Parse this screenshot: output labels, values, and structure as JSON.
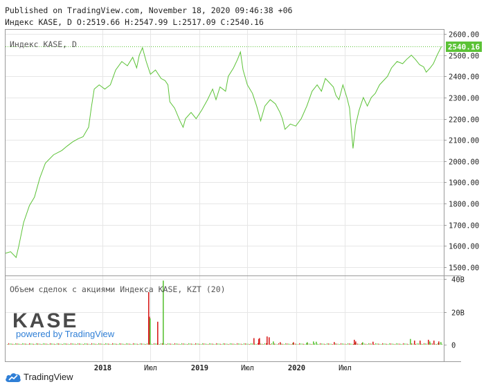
{
  "header": {
    "published": "Published on TradingView.com, November 18, 2020 09:46:38 +06",
    "ohlc": "Индекс KASE, D O:2519.66 H:2547.99 L:2517.09 C:2540.16"
  },
  "chart_data": [
    {
      "type": "line",
      "series": [
        {
          "values": [
            [
              "2017-01-01",
              1565
            ],
            [
              "2017-01-20",
              1572
            ],
            [
              "2017-02-10",
              1545
            ],
            [
              "2017-02-20",
              1600
            ],
            [
              "2017-03-10",
              1710
            ],
            [
              "2017-04-01",
              1790
            ],
            [
              "2017-04-20",
              1830
            ],
            [
              "2017-05-10",
              1920
            ],
            [
              "2017-05-31",
              1990
            ],
            [
              "2017-07-01",
              2030
            ],
            [
              "2017-08-01",
              2050
            ],
            [
              "2017-08-20",
              2070
            ],
            [
              "2017-09-10",
              2090
            ],
            [
              "2017-10-01",
              2105
            ],
            [
              "2017-10-20",
              2115
            ],
            [
              "2017-11-10",
              2160
            ],
            [
              "2017-11-20",
              2250
            ],
            [
              "2017-12-01",
              2340
            ],
            [
              "2017-12-20",
              2360
            ],
            [
              "2018-01-10",
              2340
            ],
            [
              "2018-01-31",
              2360
            ],
            [
              "2018-02-20",
              2430
            ],
            [
              "2018-03-15",
              2470
            ],
            [
              "2018-04-05",
              2450
            ],
            [
              "2018-04-25",
              2490
            ],
            [
              "2018-05-10",
              2440
            ],
            [
              "2018-05-20",
              2500
            ],
            [
              "2018-06-01",
              2535
            ],
            [
              "2018-06-15",
              2470
            ],
            [
              "2018-07-01",
              2410
            ],
            [
              "2018-07-20",
              2430
            ],
            [
              "2018-08-10",
              2390
            ],
            [
              "2018-08-25",
              2380
            ],
            [
              "2018-09-05",
              2360
            ],
            [
              "2018-09-12",
              2280
            ],
            [
              "2018-09-30",
              2250
            ],
            [
              "2018-10-20",
              2190
            ],
            [
              "2018-11-01",
              2160
            ],
            [
              "2018-11-10",
              2200
            ],
            [
              "2018-12-01",
              2230
            ],
            [
              "2018-12-20",
              2200
            ],
            [
              "2019-01-10",
              2240
            ],
            [
              "2019-02-01",
              2290
            ],
            [
              "2019-02-20",
              2340
            ],
            [
              "2019-03-05",
              2290
            ],
            [
              "2019-03-20",
              2350
            ],
            [
              "2019-04-10",
              2330
            ],
            [
              "2019-04-20",
              2400
            ],
            [
              "2019-05-10",
              2440
            ],
            [
              "2019-05-25",
              2480
            ],
            [
              "2019-06-05",
              2515
            ],
            [
              "2019-06-15",
              2430
            ],
            [
              "2019-07-01",
              2360
            ],
            [
              "2019-07-20",
              2320
            ],
            [
              "2019-08-05",
              2260
            ],
            [
              "2019-08-20",
              2190
            ],
            [
              "2019-09-05",
              2260
            ],
            [
              "2019-09-25",
              2290
            ],
            [
              "2019-10-15",
              2270
            ],
            [
              "2019-11-01",
              2230
            ],
            [
              "2019-11-10",
              2200
            ],
            [
              "2019-11-20",
              2150
            ],
            [
              "2019-12-10",
              2175
            ],
            [
              "2019-12-30",
              2165
            ],
            [
              "2020-01-20",
              2200
            ],
            [
              "2020-02-10",
              2260
            ],
            [
              "2020-03-01",
              2330
            ],
            [
              "2020-03-20",
              2360
            ],
            [
              "2020-04-05",
              2330
            ],
            [
              "2020-04-20",
              2390
            ],
            [
              "2020-05-05",
              2370
            ],
            [
              "2020-05-20",
              2350
            ],
            [
              "2020-05-30",
              2310
            ],
            [
              "2020-06-10",
              2290
            ],
            [
              "2020-06-25",
              2360
            ],
            [
              "2020-07-10",
              2300
            ],
            [
              "2020-07-20",
              2250
            ],
            [
              "2020-07-26",
              2160
            ],
            [
              "2020-08-02",
              2060
            ],
            [
              "2020-08-12",
              2170
            ],
            [
              "2020-08-25",
              2240
            ],
            [
              "2020-09-10",
              2300
            ],
            [
              "2020-09-25",
              2260
            ],
            [
              "2020-10-10",
              2300
            ],
            [
              "2020-10-25",
              2320
            ],
            [
              "2020-11-10",
              2360
            ],
            [
              "2020-11-25",
              2380
            ],
            [
              "2020-12-10",
              2400
            ],
            [
              "2020-12-25",
              2440
            ],
            [
              "2021-01-15",
              2470
            ],
            [
              "2021-02-05",
              2460
            ],
            [
              "2021-02-20",
              2480
            ],
            [
              "2021-03-10",
              2500
            ],
            [
              "2021-03-25",
              2480
            ],
            [
              "2021-04-10",
              2455
            ],
            [
              "2021-04-25",
              2445
            ],
            [
              "2021-05-05",
              2420
            ],
            [
              "2021-05-20",
              2440
            ],
            [
              "2021-06-01",
              2460
            ],
            [
              "2021-06-15",
              2500
            ],
            [
              "2021-07-01",
              2540
            ]
          ]
        }
      ],
      "ylim": [
        1460,
        2620
      ],
      "yticks": [
        1500,
        1600,
        1700,
        1800,
        1900,
        2000,
        2100,
        2200,
        2300,
        2400,
        2500,
        2600
      ],
      "ytick_labels": [
        "1500.00",
        "1600.00",
        "1700.00",
        "1800.00",
        "1900.00",
        "2000.00",
        "2100.00",
        "2200.00",
        "2300.00",
        "2400.00",
        "2500.00",
        "2600.00"
      ],
      "x_range": [
        "2017-01-01",
        "2021-07-10"
      ],
      "xticks": [
        {
          "date": "2018-01-01",
          "label": "2018",
          "bold": true
        },
        {
          "date": "2018-07-01",
          "label": "Июл",
          "bold": false
        },
        {
          "date": "2019-01-01",
          "label": "2019",
          "bold": true
        },
        {
          "date": "2019-07-01",
          "label": "Июл",
          "bold": false
        },
        {
          "date": "2020-01-01",
          "label": "2020",
          "bold": true
        },
        {
          "date": "2020-07-01",
          "label": "Июл",
          "bold": false
        }
      ],
      "legend": "Индекс KASE, D",
      "last_value": 2540.16,
      "last_value_label": "2540.16",
      "grid": true,
      "colors": {
        "line": "#5bc236",
        "axis_label_bg": "#5bc236",
        "grid": "#e6e6e6",
        "text": "#222222"
      }
    },
    {
      "type": "bar",
      "title": "Объем сделок с акциями Индекса KASE, KZT (20)",
      "ylim": [
        0,
        42
      ],
      "yticks": [
        0,
        20,
        40
      ],
      "ytick_labels": [
        "0",
        "20B",
        "40B"
      ],
      "bars": [
        [
          "2018-06-22",
          32,
          "down"
        ],
        [
          "2018-06-24",
          17,
          "down"
        ],
        [
          "2018-06-27",
          16,
          "up"
        ],
        [
          "2018-07-25",
          14,
          "down"
        ],
        [
          "2018-08-15",
          39,
          "up"
        ],
        [
          "2019-07-25",
          4,
          "down"
        ],
        [
          "2019-08-10",
          3.5,
          "down"
        ],
        [
          "2019-08-14",
          4,
          "down"
        ],
        [
          "2019-09-12",
          5,
          "down"
        ],
        [
          "2019-09-20",
          4.5,
          "down"
        ],
        [
          "2019-10-05",
          2,
          "up"
        ],
        [
          "2019-11-01",
          1.5,
          "down"
        ],
        [
          "2019-12-20",
          1.5,
          "down"
        ],
        [
          "2020-02-10",
          1.5,
          "up"
        ],
        [
          "2020-03-05",
          2,
          "up"
        ],
        [
          "2020-03-15",
          1.8,
          "up"
        ],
        [
          "2020-05-20",
          1.6,
          "down"
        ],
        [
          "2020-08-05",
          3,
          "down"
        ],
        [
          "2020-08-10",
          2,
          "down"
        ],
        [
          "2020-09-05",
          1.5,
          "up"
        ],
        [
          "2020-10-15",
          1.8,
          "down"
        ],
        [
          "2021-03-05",
          3.5,
          "up"
        ],
        [
          "2021-03-20",
          2.5,
          "down"
        ],
        [
          "2021-04-10",
          2.5,
          "down"
        ],
        [
          "2021-05-10",
          3,
          "down"
        ],
        [
          "2021-05-15",
          2,
          "up"
        ],
        [
          "2021-06-01",
          2.5,
          "down"
        ],
        [
          "2021-06-20",
          2,
          "down"
        ],
        [
          "2021-06-28",
          1.6,
          "up"
        ]
      ],
      "colors": {
        "up": "#5bc236",
        "down": "#d81e1e"
      }
    }
  ],
  "brand": {
    "logo_text": "KASE",
    "powered_by": "powered by TradingView",
    "footer_text": "TradingView",
    "footer_icon": "tradingview-cloud-icon",
    "colors": {
      "logo": "#4a4a4a",
      "accent": "#2f7fd6"
    }
  }
}
